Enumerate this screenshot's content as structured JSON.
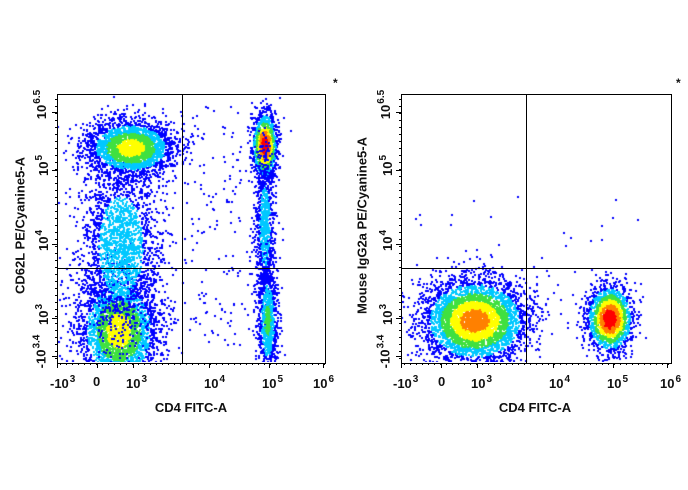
{
  "chart_data": [
    {
      "type": "scatter",
      "subtype": "flow-cytometry-density-dot-plot",
      "title": "",
      "xlabel": "CD4 FITC-A",
      "ylabel": "CD62L PE/Cyanine5-A",
      "x_ticks": [
        "-10^3",
        "0",
        "10^3",
        "10^4",
        "10^5",
        "10^6"
      ],
      "y_ticks": [
        "-10^3.4",
        "10^3",
        "10^4",
        "10^5",
        "10^6.5"
      ],
      "x_scale": "biexponential",
      "y_scale": "biexponential",
      "quadrant_gate": {
        "x": 3500,
        "y": 4000
      },
      "populations": [
        {
          "name": "CD4- CD62L high",
          "x_center": 700,
          "y_center": 200000,
          "density": "high (yellow/green)"
        },
        {
          "name": "CD4- CD62L low",
          "x_center": 700,
          "y_center": 1000,
          "density": "high (green/yellow)"
        },
        {
          "name": "CD4+ CD62L high",
          "x_center": 70000,
          "y_center": 250000,
          "density": "very high (red)"
        },
        {
          "name": "CD4+ streak to CD62L low",
          "x_center": 70000,
          "y_center": 1000,
          "density": "medium (green)"
        }
      ],
      "annotation": "*"
    },
    {
      "type": "scatter",
      "subtype": "flow-cytometry-density-dot-plot",
      "title": "",
      "xlabel": "CD4 FITC-A",
      "ylabel": "Mouse IgG2a PE/Cyanine5-A",
      "x_ticks": [
        "-10^3",
        "0",
        "10^3",
        "10^4",
        "10^5",
        "10^6"
      ],
      "y_ticks": [
        "-10^3.4",
        "10^3",
        "10^4",
        "10^5",
        "10^6.5"
      ],
      "x_scale": "biexponential",
      "y_scale": "biexponential",
      "quadrant_gate": {
        "x": 3500,
        "y": 4000
      },
      "populations": [
        {
          "name": "CD4- isotype",
          "x_center": 700,
          "y_center": 900,
          "density": "high (yellow/red)"
        },
        {
          "name": "CD4+ isotype",
          "x_center": 70000,
          "y_center": 900,
          "density": "very high (red)"
        }
      ],
      "annotation": "*"
    }
  ],
  "plots": [
    {
      "ylabel": "CD62L PE/Cyanine5-A",
      "xlabel": "CD4 FITC-A",
      "asterisk": "*",
      "x_ticks": [
        {
          "base": "-10",
          "exp": "3"
        },
        {
          "base": "0",
          "exp": ""
        },
        {
          "base": "10",
          "exp": "3"
        },
        {
          "base": "10",
          "exp": "4"
        },
        {
          "base": "10",
          "exp": "5"
        },
        {
          "base": "10",
          "exp": "6"
        }
      ],
      "y_ticks": [
        {
          "base": "-10",
          "exp": "3.4"
        },
        {
          "base": "10",
          "exp": "3"
        },
        {
          "base": "10",
          "exp": "4"
        },
        {
          "base": "10",
          "exp": "5"
        },
        {
          "base": "10",
          "exp": "6.5"
        }
      ]
    },
    {
      "ylabel": "Mouse IgG2a PE/Cyanine5-A",
      "xlabel": "CD4 FITC-A",
      "asterisk": "*",
      "x_ticks": [
        {
          "base": "-10",
          "exp": "3"
        },
        {
          "base": "0",
          "exp": ""
        },
        {
          "base": "10",
          "exp": "3"
        },
        {
          "base": "10",
          "exp": "4"
        },
        {
          "base": "10",
          "exp": "5"
        },
        {
          "base": "10",
          "exp": "6"
        }
      ],
      "y_ticks": [
        {
          "base": "-10",
          "exp": "3.4"
        },
        {
          "base": "10",
          "exp": "3"
        },
        {
          "base": "10",
          "exp": "4"
        },
        {
          "base": "10",
          "exp": "5"
        },
        {
          "base": "10",
          "exp": "6.5"
        }
      ]
    }
  ],
  "colors": {
    "low": "#0000ff",
    "mid_low": "#00c8ff",
    "mid": "#40e040",
    "mid_high": "#ffff00",
    "high": "#ff0000"
  }
}
